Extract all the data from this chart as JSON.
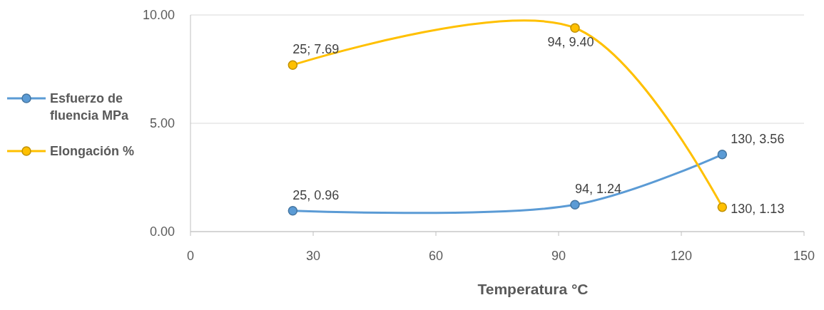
{
  "chart_data": {
    "type": "line",
    "xlabel": "Temperatura °C",
    "x": [
      25,
      94,
      130
    ],
    "series": [
      {
        "name": "Esfuerzo de fluencia MPa",
        "color": "#5b9bd5",
        "values": [
          0.96,
          1.24,
          3.56
        ],
        "value_labels": [
          "25, 0.96",
          "94, 1.24",
          "130, 3.56"
        ]
      },
      {
        "name": "Elongación %",
        "color": "#ffc000",
        "values": [
          7.69,
          9.4,
          1.13
        ],
        "value_labels": [
          "25; 7.69",
          "94, 9.40",
          "130, 1.13"
        ]
      }
    ],
    "xlim": [
      0,
      150
    ],
    "xticks": [
      0,
      30,
      60,
      90,
      120,
      150
    ],
    "ylim": [
      0,
      10
    ],
    "yticks": [
      {
        "value": 0,
        "label": "0.00"
      },
      {
        "value": 5,
        "label": "5.00"
      },
      {
        "value": 10,
        "label": "10.00"
      }
    ],
    "grid": "y",
    "legend": "left",
    "marker": "circle",
    "line_style": "solid"
  }
}
